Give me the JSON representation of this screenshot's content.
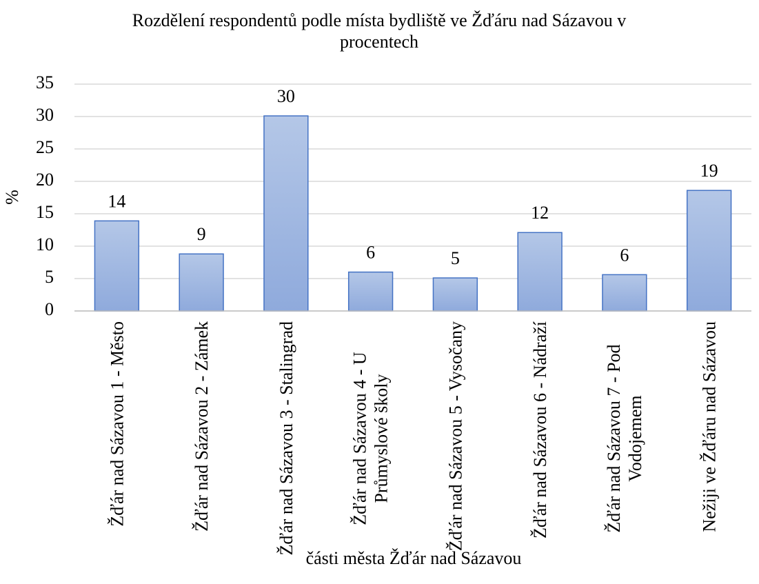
{
  "chart_data": {
    "type": "bar",
    "title": "Rozdělení respondentů podle místa bydliště ve Žďáru nad Sázavou v procentech",
    "xlabel": "části města Žďár nad Sázavou",
    "ylabel": "%",
    "categories": [
      "Žďár nad Sázavou 1 - Město",
      "Žďár nad Sázavou 2 - Zámek",
      "Žďár nad Sázavou 3 - Stalingrad",
      "Žďár nad Sázavou 4 - U Průmyslové školy",
      "Žďár nad Sázavou 5 - Vysočany",
      "Žďár nad Sázavou 6 - Nádraží",
      "Žďár nad Sázavou 7 - Pod Vodojemem",
      "Nežiji ve Žďáru nad Sázavou"
    ],
    "values": [
      13.9,
      8.8,
      30.1,
      6.0,
      5.1,
      12.1,
      5.6,
      18.6
    ],
    "value_labels": [
      "14",
      "9",
      "30",
      "6",
      "5",
      "12",
      "6",
      "19"
    ],
    "color": "#8faadc",
    "ylim": [
      0,
      35
    ],
    "yticks": [
      0,
      5,
      10,
      15,
      20,
      25,
      30,
      35
    ],
    "grid": true
  }
}
